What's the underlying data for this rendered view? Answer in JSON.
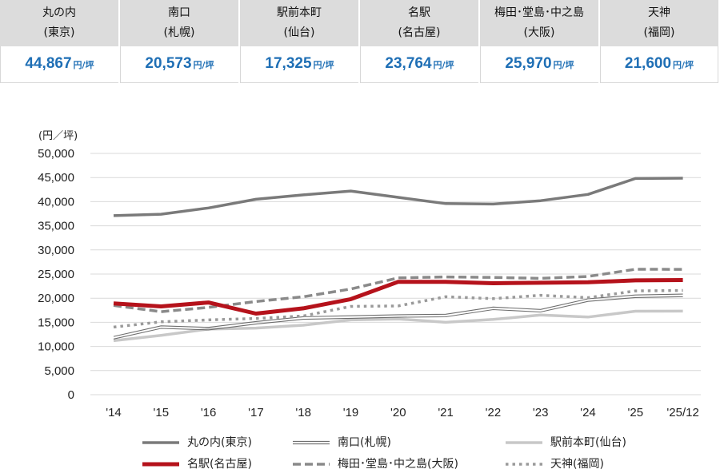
{
  "cards": [
    {
      "name": "丸の内",
      "sub": "(東京)",
      "value": "44,867",
      "unit": "円/坪"
    },
    {
      "name": "南口",
      "sub": "(札幌)",
      "value": "20,573",
      "unit": "円/坪"
    },
    {
      "name": "駅前本町",
      "sub": "(仙台)",
      "value": "17,325",
      "unit": "円/坪"
    },
    {
      "name": "名駅",
      "sub": "(名古屋)",
      "value": "23,764",
      "unit": "円/坪"
    },
    {
      "name": "梅田･堂島･中之島",
      "sub": "(大阪)",
      "value": "25,970",
      "unit": "円/坪"
    },
    {
      "name": "天神",
      "sub": "(福岡)",
      "value": "21,600",
      "unit": "円/坪"
    }
  ],
  "chart_data": {
    "type": "line",
    "ylabel": "(円／坪)",
    "ylim": [
      0,
      50000
    ],
    "yticks": [
      "50,000",
      "45,000",
      "40,000",
      "35,000",
      "30,000",
      "25,000",
      "20,000",
      "15,000",
      "10,000",
      "5,000",
      "0"
    ],
    "categories": [
      "'14",
      "'15",
      "'16",
      "'17",
      "'18",
      "'19",
      "'20",
      "'21",
      "'22",
      "'23",
      "'24",
      "'25",
      "'25/12"
    ],
    "grid": true,
    "legend_position": "bottom",
    "series": [
      {
        "name": "丸の内(東京)",
        "color": "#7a7a7a",
        "style": "solid-thick",
        "values": [
          37100,
          37400,
          38700,
          40500,
          41400,
          42200,
          40900,
          39600,
          39500,
          40200,
          41500,
          44800,
          44867
        ]
      },
      {
        "name": "南口(札幌)",
        "color": "#6e6e6e",
        "style": "double",
        "values": [
          11800,
          14000,
          13700,
          14900,
          15900,
          16100,
          16300,
          16400,
          17900,
          17400,
          19600,
          20400,
          20573
        ]
      },
      {
        "name": "駅前本町(仙台)",
        "color": "#c8c8c8",
        "style": "solid-thick",
        "values": [
          11200,
          12300,
          13600,
          13800,
          14400,
          15500,
          15700,
          15000,
          15600,
          16500,
          16100,
          17300,
          17325
        ]
      },
      {
        "name": "名駅(名古屋)",
        "color": "#b5121b",
        "style": "solid-heavy",
        "values": [
          18900,
          18300,
          19100,
          16800,
          17900,
          19800,
          23400,
          23400,
          23100,
          23200,
          23300,
          23700,
          23764
        ]
      },
      {
        "name": "梅田･堂島･中之島(大阪)",
        "color": "#8a8a8a",
        "style": "dashed",
        "values": [
          18500,
          17200,
          18100,
          19300,
          20300,
          21900,
          24200,
          24400,
          24300,
          24100,
          24500,
          26000,
          25970
        ]
      },
      {
        "name": "天神(福岡)",
        "color": "#9a9a9a",
        "style": "dotted",
        "values": [
          14000,
          15100,
          15500,
          15800,
          16300,
          18300,
          18400,
          20300,
          19900,
          20600,
          20100,
          21500,
          21600
        ]
      }
    ]
  }
}
